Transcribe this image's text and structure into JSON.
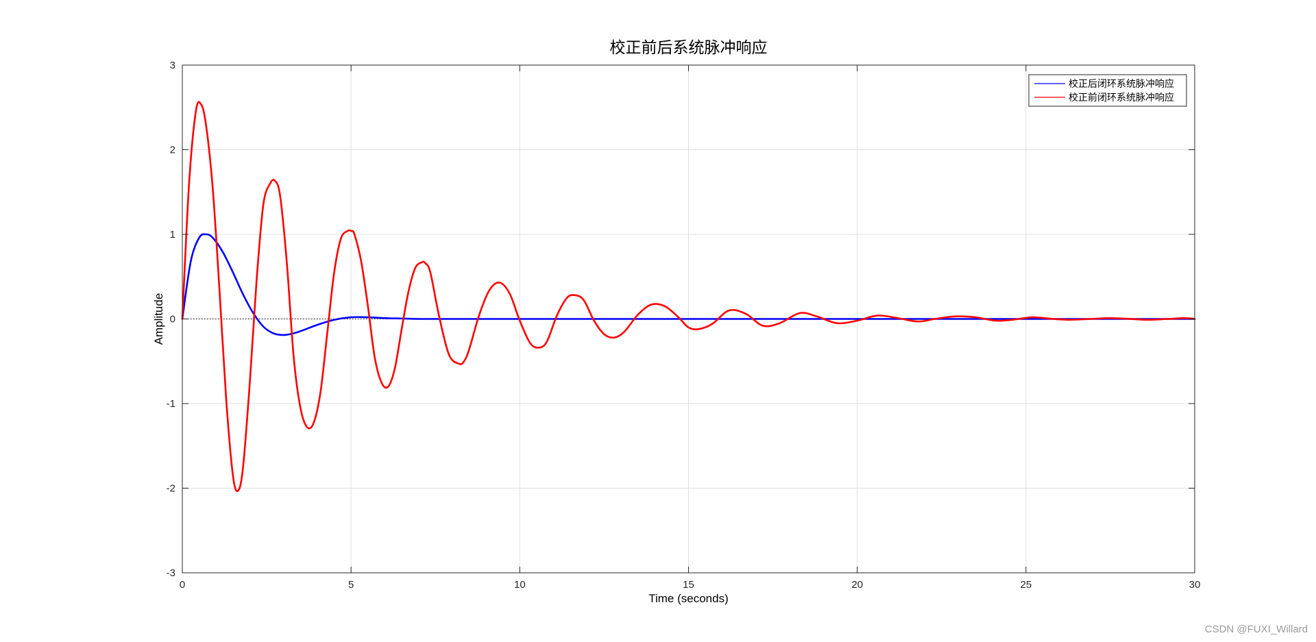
{
  "chart_data": {
    "type": "line",
    "title": "校正前后系统脉冲响应",
    "xlabel": "Time (seconds)",
    "ylabel": "Amplitude",
    "xlim": [
      0,
      30
    ],
    "ylim": [
      -3,
      3
    ],
    "xticks": [
      0,
      5,
      10,
      15,
      20,
      25,
      30
    ],
    "yticks": [
      -3,
      -2,
      -1,
      0,
      1,
      2,
      3
    ],
    "grid": true,
    "legend_position": "top-right",
    "zero_line": "dotted",
    "series": [
      {
        "name": "校正后闭环系统脉冲响应",
        "color": "#0000ff",
        "x": [
          0,
          0.25,
          0.5,
          0.7,
          0.9,
          1.2,
          1.5,
          1.8,
          2.1,
          2.4,
          2.7,
          3.0,
          3.3,
          3.6,
          4.0,
          4.5,
          5.0,
          5.5,
          6.0,
          6.5,
          7.0,
          8.0,
          10.0,
          15.0,
          20.0,
          25.0,
          30.0
        ],
        "y": [
          0,
          0.68,
          0.96,
          1.0,
          0.96,
          0.79,
          0.55,
          0.29,
          0.07,
          -0.09,
          -0.17,
          -0.19,
          -0.17,
          -0.13,
          -0.07,
          -0.01,
          0.02,
          0.02,
          0.01,
          0.005,
          0.0,
          0.0,
          0.0,
          0.0,
          0.0,
          0.0,
          0.0
        ]
      },
      {
        "name": "校正前闭环系统脉冲响应",
        "color": "#ff0000",
        "x": [
          0,
          0.2,
          0.4,
          0.55,
          0.7,
          0.9,
          1.1,
          1.3,
          1.5,
          1.65,
          1.8,
          2.0,
          2.2,
          2.4,
          2.6,
          2.75,
          2.9,
          3.1,
          3.3,
          3.5,
          3.7,
          3.9,
          4.1,
          4.3,
          4.5,
          4.7,
          4.9,
          5.0,
          5.1,
          5.3,
          5.5,
          5.7,
          5.9,
          6.1,
          6.3,
          6.5,
          6.7,
          6.9,
          7.1,
          7.2,
          7.35,
          7.6,
          7.9,
          8.2,
          8.35,
          8.5,
          8.8,
          9.1,
          9.4,
          9.7,
          10.0,
          10.3,
          10.55,
          10.8,
          11.1,
          11.4,
          11.65,
          11.9,
          12.2,
          12.5,
          12.8,
          13.1,
          13.5,
          13.9,
          14.3,
          14.7,
          15.0,
          15.3,
          15.7,
          16.2,
          16.7,
          17.2,
          17.7,
          18.3,
          18.8,
          19.4,
          20.0,
          20.6,
          21.2,
          21.8,
          22.3,
          22.9,
          23.5,
          24.1,
          24.6,
          25.2,
          25.8,
          26.3,
          26.9,
          27.5,
          28.1,
          28.6,
          29.2,
          29.7,
          30.0
        ],
        "y": [
          0,
          1.6,
          2.45,
          2.54,
          2.3,
          1.55,
          0.35,
          -0.95,
          -1.85,
          -2.03,
          -1.75,
          -0.75,
          0.45,
          1.35,
          1.6,
          1.63,
          1.45,
          0.65,
          -0.45,
          -1.05,
          -1.28,
          -1.22,
          -0.85,
          -0.15,
          0.55,
          0.95,
          1.04,
          1.04,
          1.0,
          0.68,
          0.15,
          -0.45,
          -0.75,
          -0.8,
          -0.58,
          -0.12,
          0.32,
          0.6,
          0.67,
          0.66,
          0.55,
          0.05,
          -0.42,
          -0.53,
          -0.5,
          -0.36,
          0.05,
          0.34,
          0.43,
          0.3,
          -0.02,
          -0.28,
          -0.34,
          -0.27,
          0.04,
          0.25,
          0.28,
          0.22,
          -0.02,
          -0.18,
          -0.22,
          -0.15,
          0.05,
          0.17,
          0.15,
          0.02,
          -0.1,
          -0.12,
          -0.06,
          0.1,
          0.06,
          -0.08,
          -0.05,
          0.07,
          0.03,
          -0.05,
          -0.02,
          0.04,
          0.01,
          -0.03,
          0.0,
          0.03,
          0.02,
          -0.02,
          -0.01,
          0.02,
          0.0,
          -0.01,
          0.0,
          0.01,
          0.0,
          -0.01,
          0.0,
          0.01,
          0.0
        ]
      }
    ]
  },
  "watermark": "CSDN @FUXI_Willard"
}
